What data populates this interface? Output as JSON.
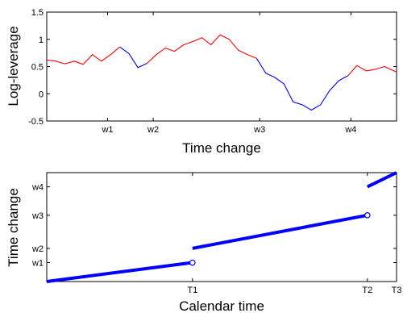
{
  "chart_data": [
    {
      "type": "line",
      "xlabel": "Time change",
      "ylabel": "Log-leverage",
      "ylim": [
        -0.5,
        1.5
      ],
      "yticks": [
        -0.5,
        0,
        0.5,
        1,
        1.5
      ],
      "ytick_labels": [
        "-0.5",
        "0",
        "0.5",
        "1",
        "1.5"
      ],
      "xlim": [
        0,
        11.5
      ],
      "xticks": [
        2,
        3.5,
        7,
        10
      ],
      "xtick_labels": [
        "w1",
        "w2",
        "w3",
        "w4"
      ],
      "series": [
        {
          "color": "#ff0000",
          "x": [
            0,
            0.3,
            0.6,
            0.9,
            1.2,
            1.5,
            1.8,
            2.1,
            2.4
          ],
          "y": [
            0.62,
            0.6,
            0.55,
            0.6,
            0.54,
            0.72,
            0.6,
            0.72,
            0.86
          ]
        },
        {
          "color": "#0000ff",
          "x": [
            2.4,
            2.7,
            3.0,
            3.3
          ],
          "y": [
            0.86,
            0.74,
            0.48,
            0.56
          ]
        },
        {
          "color": "#ff0000",
          "x": [
            3.3,
            3.6,
            3.9,
            4.2,
            4.5,
            4.8,
            5.1,
            5.4,
            5.7,
            6.0,
            6.3,
            6.6,
            6.9
          ],
          "y": [
            0.56,
            0.72,
            0.84,
            0.78,
            0.9,
            0.96,
            1.03,
            0.9,
            1.08,
            1.0,
            0.8,
            0.72,
            0.65
          ]
        },
        {
          "color": "#0000ff",
          "x": [
            6.9,
            7.2,
            7.5,
            7.8,
            8.1,
            8.4,
            8.7,
            9.0,
            9.3,
            9.6,
            9.9
          ],
          "y": [
            0.65,
            0.38,
            0.3,
            0.18,
            -0.15,
            -0.2,
            -0.3,
            -0.2,
            0.06,
            0.24,
            0.33
          ]
        },
        {
          "color": "#ff0000",
          "x": [
            9.9,
            10.2,
            10.5,
            10.8,
            11.1,
            11.5
          ],
          "y": [
            0.33,
            0.52,
            0.42,
            0.45,
            0.5,
            0.4
          ]
        }
      ]
    },
    {
      "type": "line",
      "xlabel": "Calendar time",
      "ylabel": "Time change",
      "xlim": [
        0,
        12
      ],
      "xticks": [
        5,
        11,
        12
      ],
      "xtick_labels": [
        "T1",
        "T2",
        "T3"
      ],
      "ylim": [
        0,
        11.5
      ],
      "yticks": [
        2,
        3.5,
        7,
        10
      ],
      "ytick_labels": [
        "w1",
        "w2",
        "w3",
        "w4"
      ],
      "series": [
        {
          "color": "#0000ff",
          "x": [
            0,
            5
          ],
          "y": [
            0,
            2
          ]
        },
        {
          "color": "#0000ff",
          "x": [
            5,
            11
          ],
          "y": [
            3.5,
            7
          ]
        },
        {
          "color": "#0000ff",
          "x": [
            11,
            12
          ],
          "y": [
            10,
            11.5
          ]
        }
      ],
      "open_markers": [
        {
          "x": 5,
          "y": 2
        },
        {
          "x": 11,
          "y": 7
        }
      ]
    }
  ]
}
